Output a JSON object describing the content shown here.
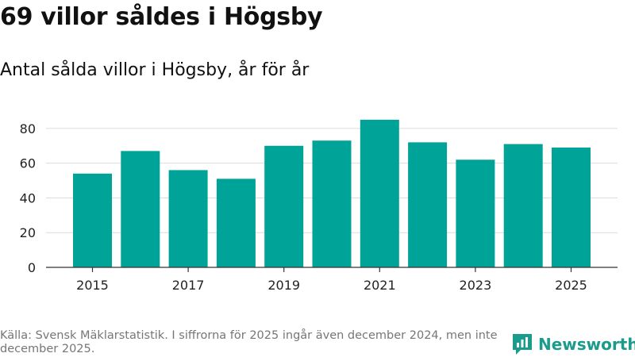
{
  "header": {
    "title": "69 villor såldes i Högsby",
    "subtitle": "Antal sålda villor i Högsby, år för år"
  },
  "footer": {
    "source": "Källa: Svensk Mäklarstatistik. I siffrorna för 2025 ingår även december 2024, men inte december 2025."
  },
  "brand": {
    "name": "Newsworthy",
    "color": "#1a9b8b",
    "icon": "newsworthy-logo-icon"
  },
  "chart_data": {
    "type": "bar",
    "title": "69 villor såldes i Högsby",
    "subtitle": "Antal sålda villor i Högsby, år för år",
    "xlabel": "",
    "ylabel": "",
    "categories": [
      "2015",
      "2016",
      "2017",
      "2018",
      "2019",
      "2020",
      "2021",
      "2022",
      "2023",
      "2024",
      "2025"
    ],
    "values": [
      54,
      67,
      56,
      51,
      70,
      73,
      85,
      72,
      62,
      71,
      69
    ],
    "x_tick_labels": [
      "2015",
      "2017",
      "2019",
      "2021",
      "2023",
      "2025"
    ],
    "y_ticks": [
      0,
      20,
      40,
      60,
      80
    ],
    "ylim": [
      0,
      90
    ],
    "grid": true,
    "bar_color": "#00a398",
    "legend": "none"
  }
}
